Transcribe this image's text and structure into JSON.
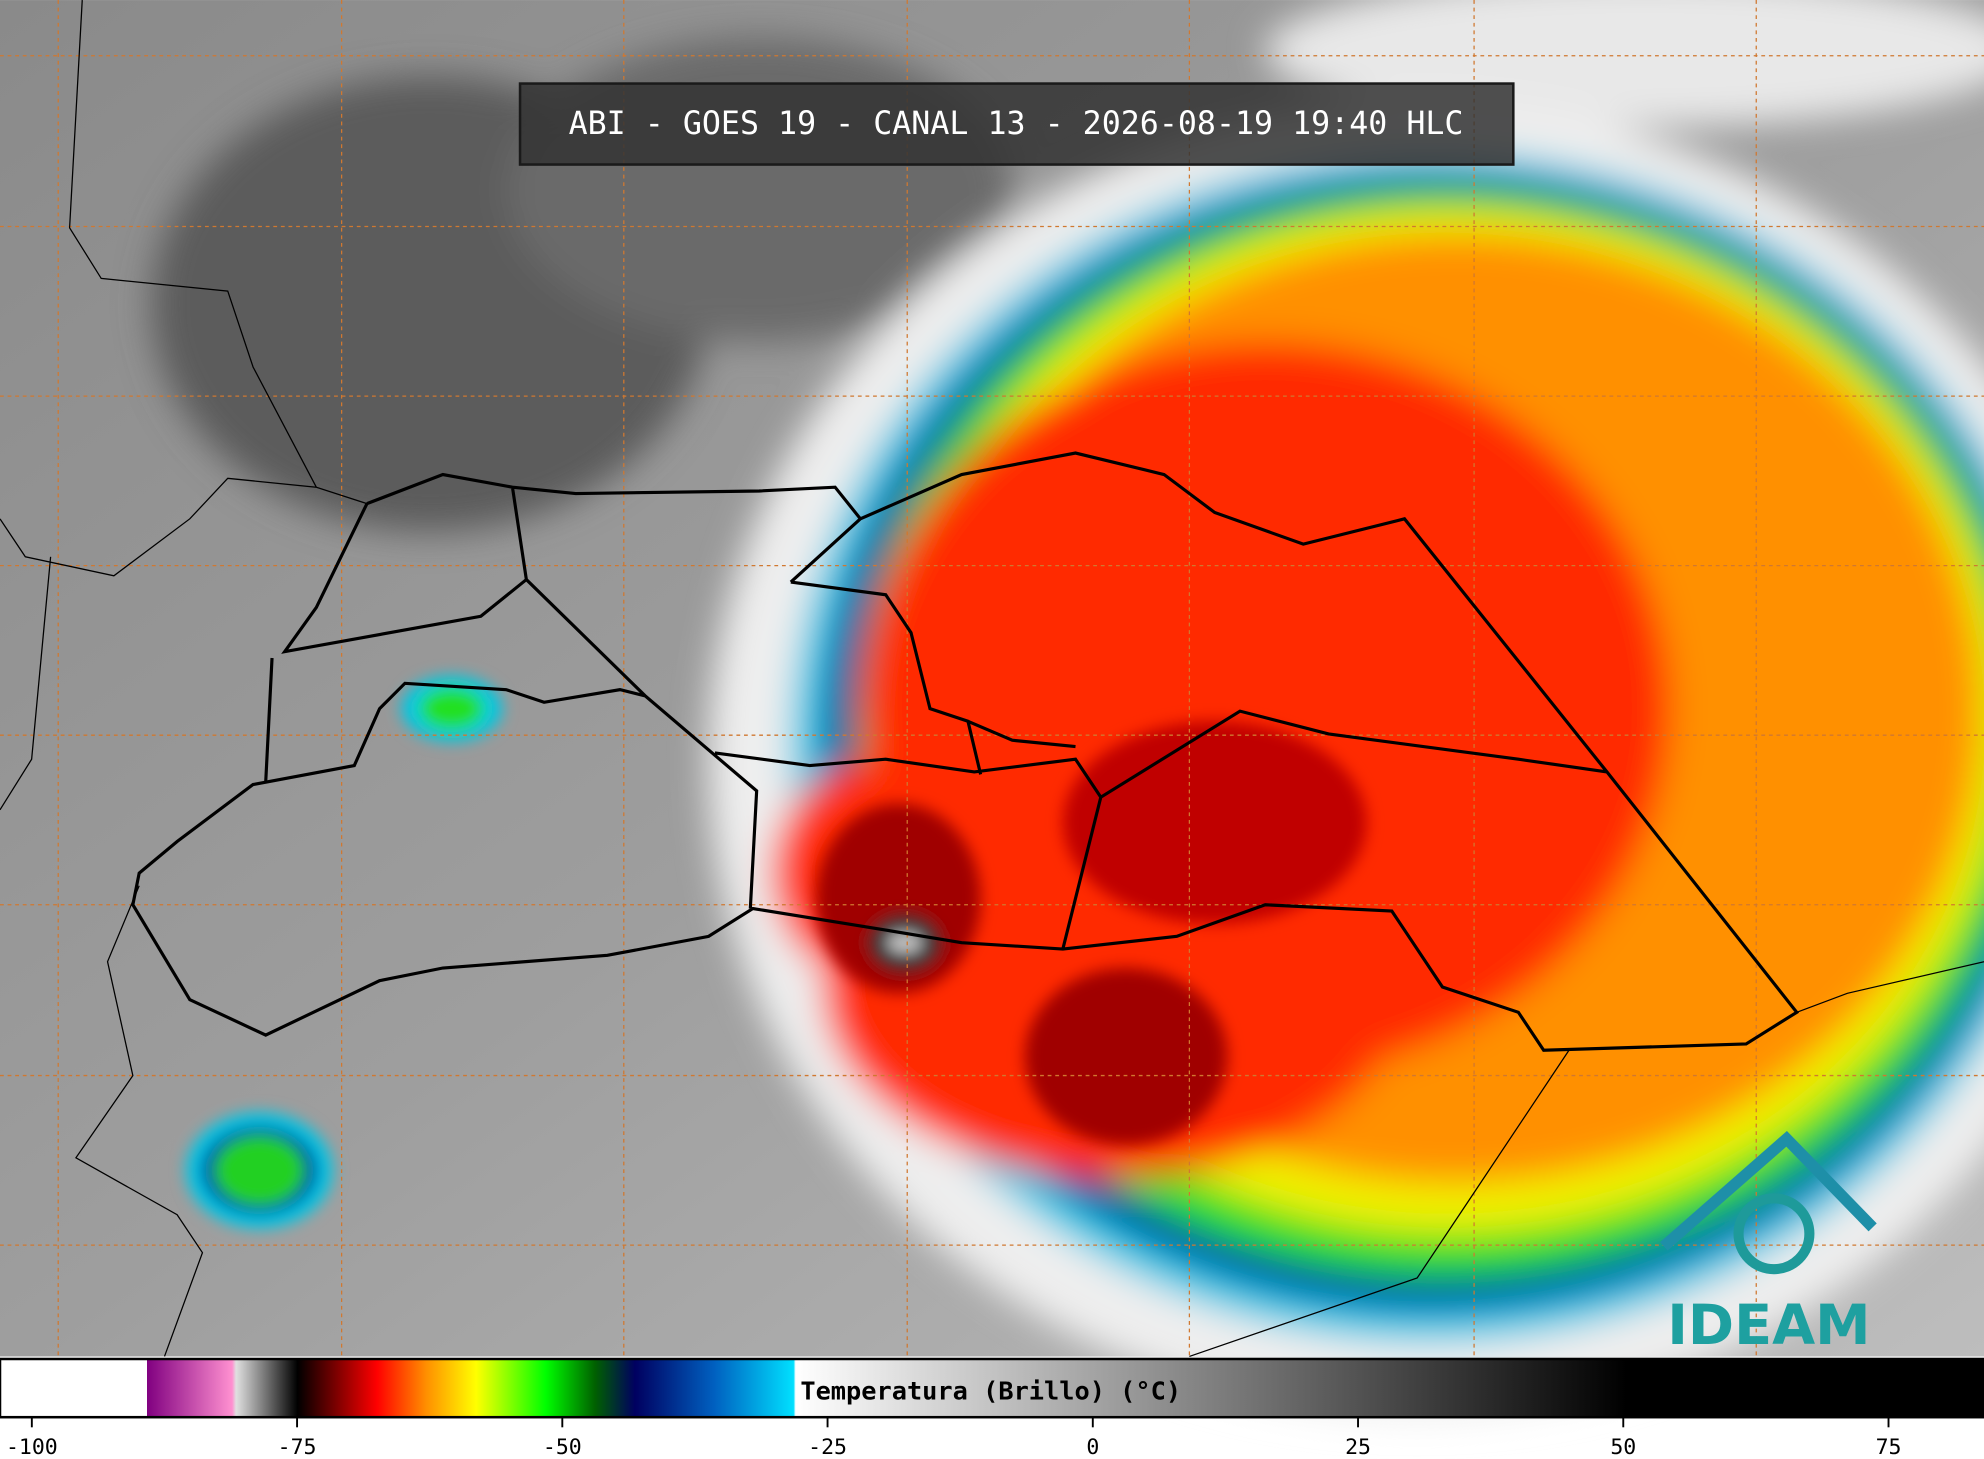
{
  "header": {
    "title": "ABI - GOES 19 - CANAL 13 - 2026-08-19 19:40 HLC"
  },
  "colorbar": {
    "label": "Temperatura (Brillo) (°C)",
    "lim": [
      -103,
      84
    ],
    "ticks": [
      -100,
      -75,
      -50,
      -25,
      0,
      25,
      50,
      75
    ]
  },
  "logo": {
    "text": "IDEAM"
  }
}
